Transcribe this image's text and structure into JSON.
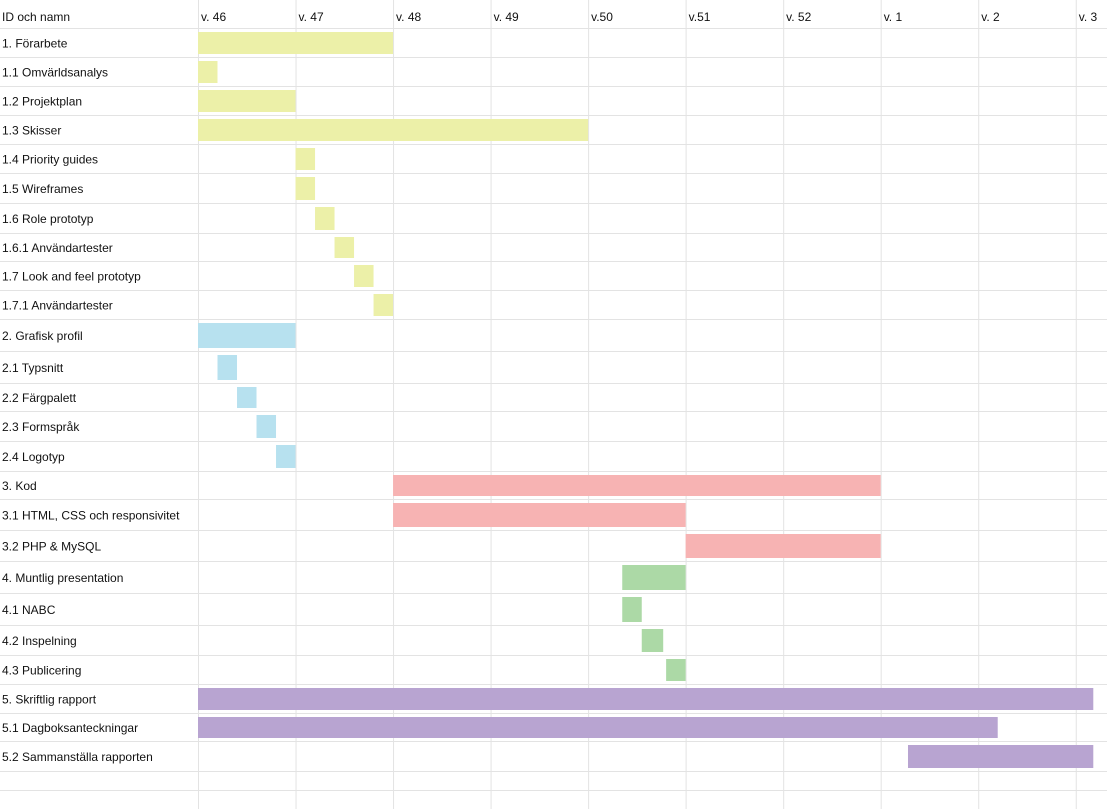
{
  "chart_data": {
    "type": "gantt",
    "ylabel": "ID och namn",
    "xlim": [
      0,
      9.3
    ],
    "xticks": [
      {
        "value": 0,
        "label": "v. 46"
      },
      {
        "value": 1,
        "label": "v. 47"
      },
      {
        "value": 2,
        "label": "v. 48"
      },
      {
        "value": 3,
        "label": "v. 49"
      },
      {
        "value": 4,
        "label": "v.50"
      },
      {
        "value": 5,
        "label": "v.51"
      },
      {
        "value": 6,
        "label": "v. 52"
      },
      {
        "value": 7,
        "label": "v. 1"
      },
      {
        "value": 8,
        "label": "v. 2"
      },
      {
        "value": 9,
        "label": "v. 3"
      }
    ],
    "grid": true,
    "groups": [
      {
        "color": "#ecf0a8",
        "tasks": [
          {
            "name": "1. Förarbete",
            "start": 0,
            "end": 2
          },
          {
            "name": "1.1 Omvärldsanalys",
            "start": 0,
            "end": 0.2
          },
          {
            "name": "1.2 Projektplan",
            "start": 0,
            "end": 1
          },
          {
            "name": "1.3 Skisser",
            "start": 0,
            "end": 4
          },
          {
            "name": "1.4 Priority guides",
            "start": 1,
            "end": 1.2
          },
          {
            "name": "1.5 Wireframes",
            "start": 1,
            "end": 1.2
          },
          {
            "name": "1.6 Role prototyp",
            "start": 1.2,
            "end": 1.4
          },
          {
            "name": "1.6.1 Användartester",
            "start": 1.4,
            "end": 1.6
          },
          {
            "name": "1.7 Look and feel prototyp",
            "start": 1.6,
            "end": 1.8
          },
          {
            "name": "1.7.1 Användartester",
            "start": 1.8,
            "end": 2
          }
        ]
      },
      {
        "color": "#b7e1ef",
        "tasks": [
          {
            "name": "2. Grafisk profil",
            "start": 0,
            "end": 1
          },
          {
            "name": "2.1 Typsnitt",
            "start": 0.2,
            "end": 0.4
          },
          {
            "name": "2.2 Färgpalett",
            "start": 0.4,
            "end": 0.6
          },
          {
            "name": "2.3 Formspråk",
            "start": 0.6,
            "end": 0.8
          },
          {
            "name": "2.4 Logotyp",
            "start": 0.8,
            "end": 1
          }
        ]
      },
      {
        "color": "#f7b3b3",
        "tasks": [
          {
            "name": "3. Kod",
            "start": 2,
            "end": 7
          },
          {
            "name": "3.1 HTML, CSS och responsivitet",
            "start": 2,
            "end": 5
          },
          {
            "name": "3.2 PHP & MySQL",
            "start": 5,
            "end": 7
          }
        ]
      },
      {
        "color": "#acd9a6",
        "tasks": [
          {
            "name": "4. Muntlig presentation",
            "start": 4.35,
            "end": 5
          },
          {
            "name": "4.1 NABC",
            "start": 4.35,
            "end": 4.55
          },
          {
            "name": "4.2 Inspelning",
            "start": 4.55,
            "end": 4.77
          },
          {
            "name": "4.3 Publicering",
            "start": 4.8,
            "end": 5
          }
        ]
      },
      {
        "color": "#b8a4d1",
        "tasks": [
          {
            "name": "5. Skriftlig rapport",
            "start": 0,
            "end": 9.18
          },
          {
            "name": "5.1 Dagboksanteckningar",
            "start": 0,
            "end": 8.2
          },
          {
            "name": "5.2 Sammanställa rapporten",
            "start": 7.28,
            "end": 9.18
          }
        ]
      }
    ]
  }
}
